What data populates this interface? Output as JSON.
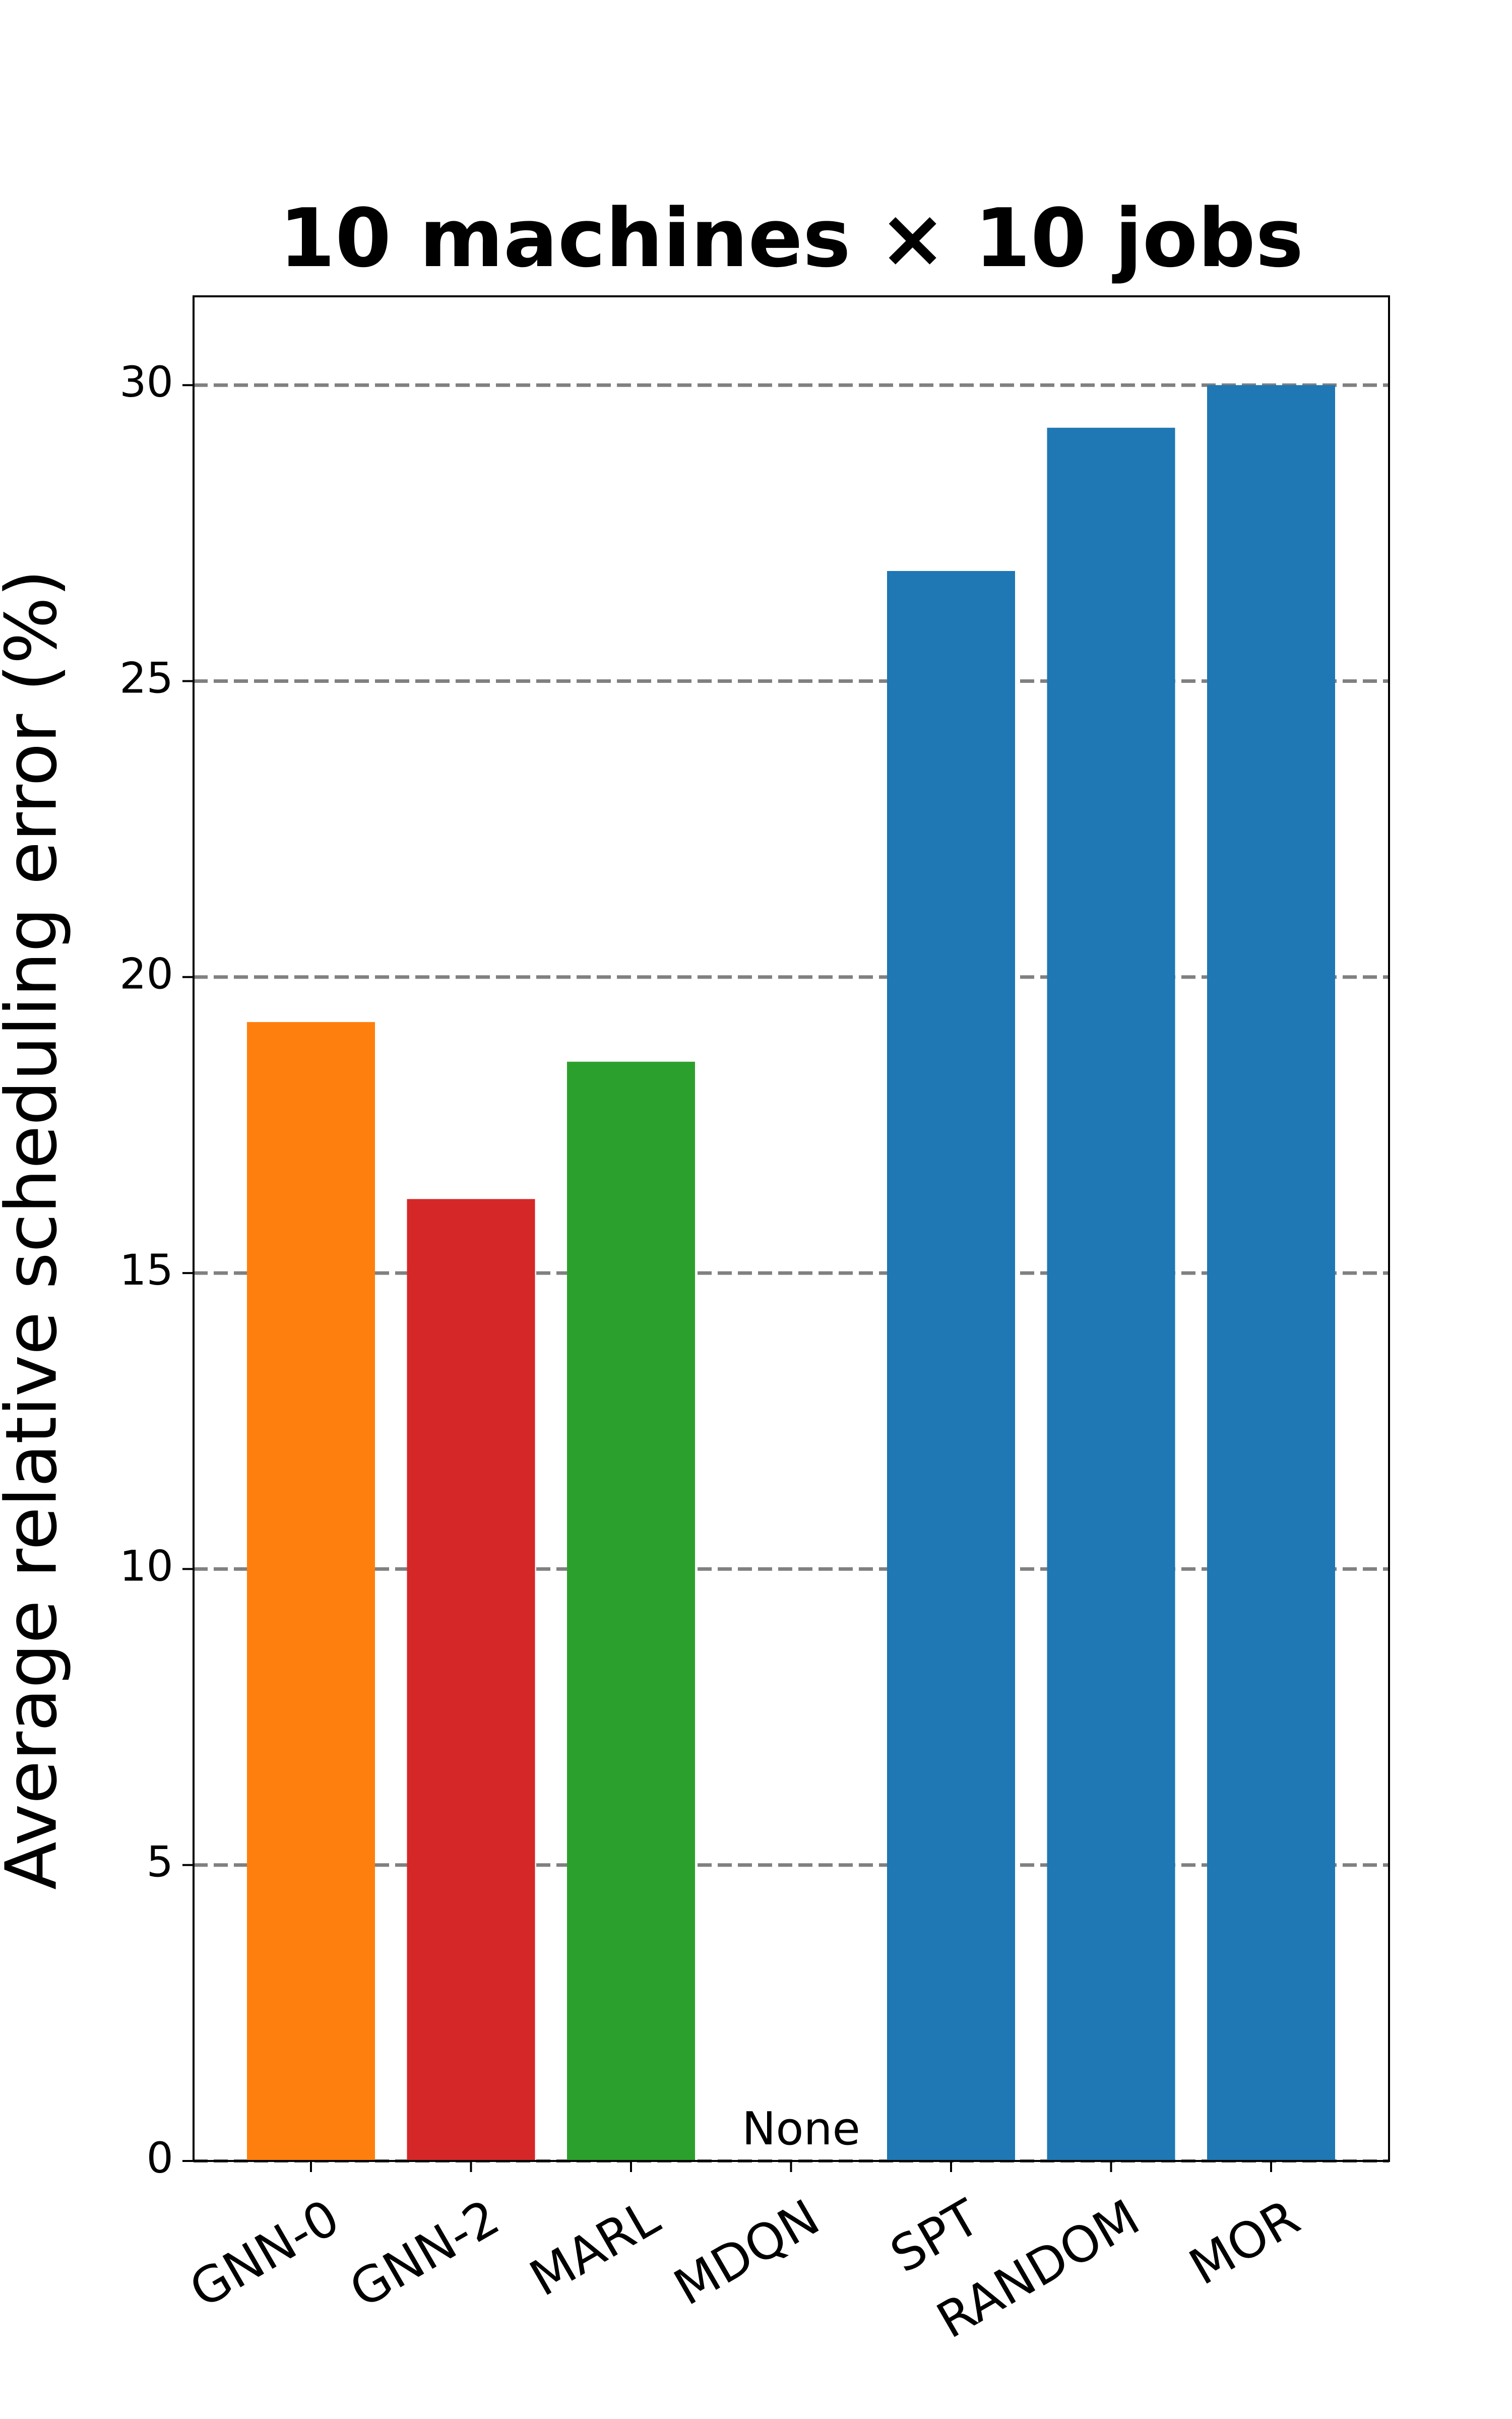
{
  "chart_data": {
    "type": "bar",
    "title": "10 machines × 10 jobs",
    "y_label": "Average relative scheduling error (%)",
    "categories": [
      "GNN-0",
      "GNN-2",
      "MARL",
      "MDQN",
      "SPT",
      "RANDOM",
      "MOR"
    ],
    "values": [
      19.24,
      16.25,
      18.57,
      null,
      26.86,
      29.28,
      30.0
    ],
    "value_labels": [
      null,
      null,
      null,
      "None",
      null,
      null,
      null
    ],
    "colors": [
      "#ff7f0e",
      "#d62728",
      "#2ca02c",
      "#1f77b4",
      "#1f77b4",
      "#1f77b4",
      "#1f77b4"
    ],
    "ylim": [
      0,
      31.5
    ],
    "yticks": [
      0,
      5,
      10,
      15,
      20,
      25,
      30
    ],
    "grid": true
  }
}
